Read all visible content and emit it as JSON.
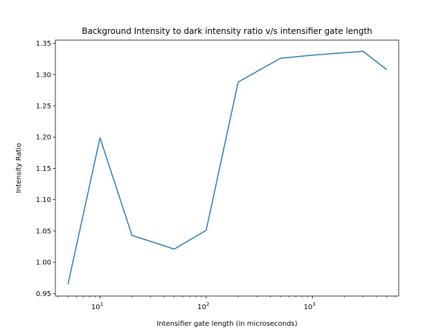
{
  "chart_data": {
    "type": "line",
    "title": "Background Intensity to dark intensity ratio v/s intensifier gate length",
    "xlabel": "Intensifier gate length (in microseconds)",
    "ylabel": "Intensity Ratio",
    "xscale": "log",
    "xlim": [
      3.8,
      6500
    ],
    "ylim": [
      0.946,
      1.355
    ],
    "grid": false,
    "x_ticks": [
      {
        "base": "10",
        "exp": "1",
        "value": 10
      },
      {
        "base": "10",
        "exp": "2",
        "value": 100
      },
      {
        "base": "10",
        "exp": "3",
        "value": 1000
      }
    ],
    "y_ticks": [
      {
        "label": "0.95",
        "value": 0.95
      },
      {
        "label": "1.00",
        "value": 1.0
      },
      {
        "label": "1.05",
        "value": 1.05
      },
      {
        "label": "1.10",
        "value": 1.1
      },
      {
        "label": "1.15",
        "value": 1.15
      },
      {
        "label": "1.20",
        "value": 1.2
      },
      {
        "label": "1.25",
        "value": 1.25
      },
      {
        "label": "1.30",
        "value": 1.3
      },
      {
        "label": "1.35",
        "value": 1.35
      }
    ],
    "series": [
      {
        "color": "#1f77b4",
        "x": [
          5,
          10,
          20,
          50,
          100,
          200,
          500,
          1000,
          3000,
          5000
        ],
        "y": [
          0.965,
          1.199,
          1.043,
          1.021,
          1.051,
          1.288,
          1.326,
          1.331,
          1.337,
          1.308
        ]
      }
    ]
  }
}
